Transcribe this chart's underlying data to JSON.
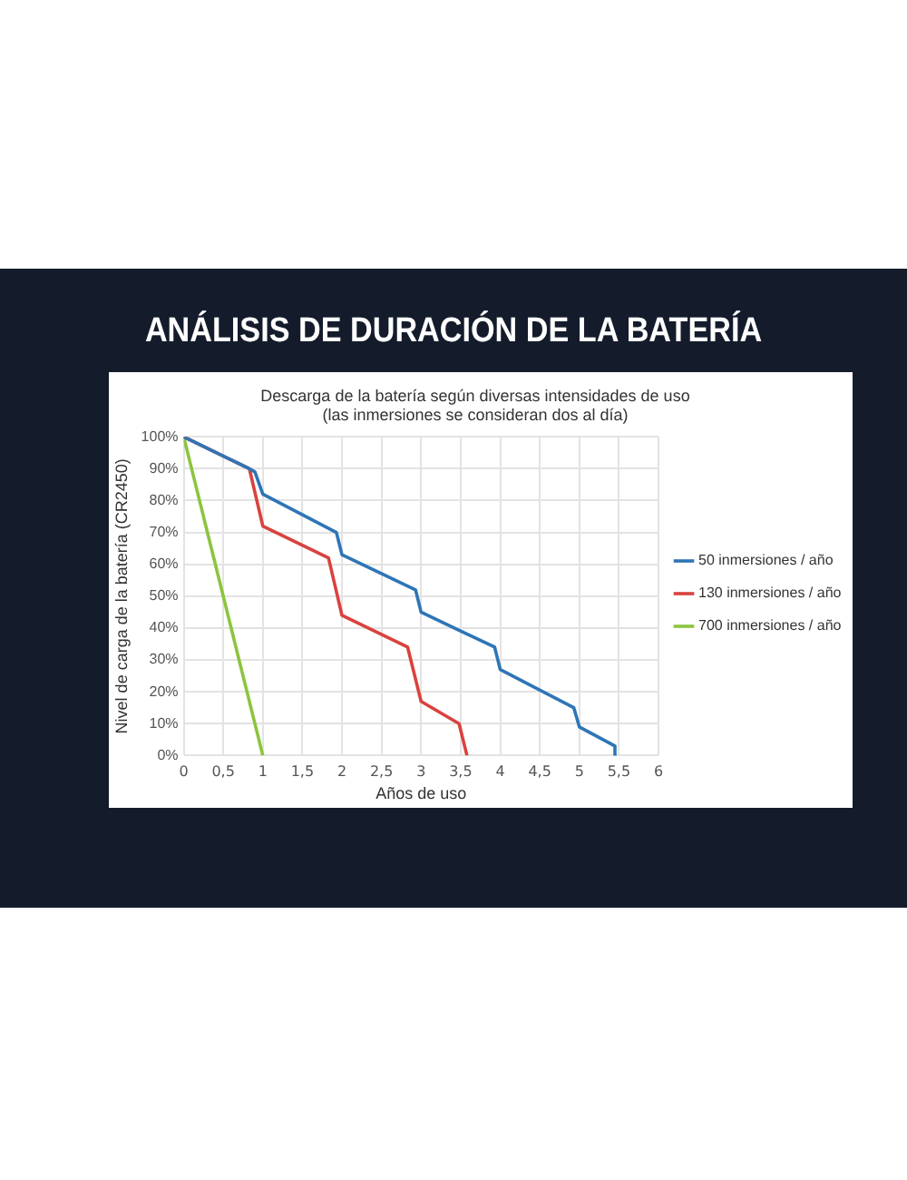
{
  "chart_data": {
    "type": "line",
    "title": "ANÁLISIS DE DURACIÓN DE LA BATERÍA",
    "subtitle": "Descarga de la batería según diversas intensidades de uso",
    "annotations": [
      "(las inmersiones se consideran dos al día)"
    ],
    "xlabel": "Años de uso",
    "ylabel": "Nivel de carga de la batería (CR2450)",
    "series": [
      {
        "name": "50 inmersiones / año",
        "color": "#2e75b6",
        "x": [
          0,
          0.83,
          0.9,
          1,
          1.93,
          2,
          2.93,
          3,
          3.93,
          4,
          4.93,
          5,
          5.45,
          5.45
        ],
        "values": [
          100,
          90,
          89,
          82,
          70,
          63,
          52,
          45,
          34,
          27,
          15,
          9,
          3,
          0
        ]
      },
      {
        "name": "130 inmersiones / año",
        "color": "#d9423f",
        "x": [
          0,
          0.83,
          1,
          1.83,
          2,
          2.83,
          3,
          3.48,
          3.58
        ],
        "values": [
          100,
          90,
          72,
          62,
          44,
          34,
          17,
          10,
          0
        ]
      },
      {
        "name": "700 inmersiones / año",
        "color": "#8cc43f",
        "x": [
          0,
          1
        ],
        "values": [
          100,
          0
        ]
      }
    ],
    "xlim": [
      0,
      6
    ],
    "xticks": [
      0,
      {
        "value": 0.5,
        "label": "0,5"
      },
      1,
      {
        "value": 1.5,
        "label": "1,5"
      },
      2,
      {
        "value": 2.5,
        "label": "2,5"
      },
      3,
      {
        "value": 3.5,
        "label": "3,5"
      },
      4,
      {
        "value": 4.5,
        "label": "4,5"
      },
      5,
      {
        "value": 5.5,
        "label": "5,5"
      },
      6
    ],
    "ylim": [
      0,
      100
    ],
    "yticks": [
      {
        "value": 0,
        "label": "0%"
      },
      {
        "value": 10,
        "label": "10%"
      },
      {
        "value": 20,
        "label": "20%"
      },
      {
        "value": 30,
        "label": "30%"
      },
      {
        "value": 40,
        "label": "40%"
      },
      {
        "value": 50,
        "label": "50%"
      },
      {
        "value": 60,
        "label": "60%"
      },
      {
        "value": 70,
        "label": "70%"
      },
      {
        "value": 80,
        "label": "80%"
      },
      {
        "value": 90,
        "label": "90%"
      },
      {
        "value": 100,
        "label": "100%"
      }
    ],
    "grid": true,
    "legend": "right",
    "marker": "none",
    "line_style": "solid"
  }
}
